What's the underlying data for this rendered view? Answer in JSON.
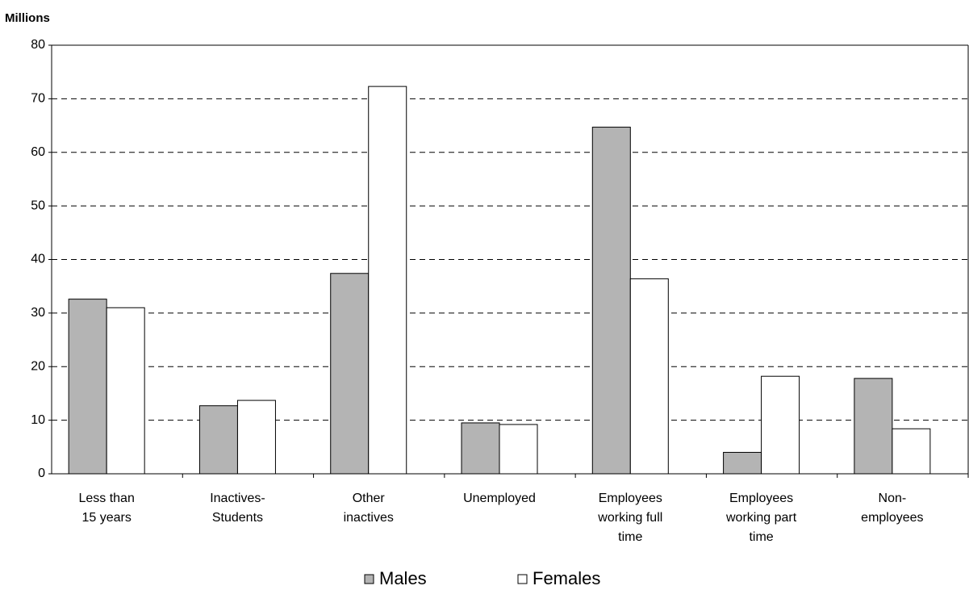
{
  "chart_data": {
    "type": "bar",
    "y_label": "Millions",
    "categories": [
      "Less than 15 years",
      "Inactives-Students",
      "Other inactives",
      "Unemployed",
      "Employees working full time",
      "Employees working part time",
      "Non-employees"
    ],
    "series": [
      {
        "name": "Males",
        "color": "#b4b4b4",
        "values": [
          32.6,
          12.7,
          37.4,
          9.5,
          64.7,
          4.0,
          17.8
        ]
      },
      {
        "name": "Females",
        "color": "#ffffff",
        "values": [
          31.0,
          13.7,
          72.3,
          9.2,
          36.4,
          18.2,
          8.4
        ]
      }
    ],
    "ylim": [
      0,
      80
    ],
    "yticks": [
      0,
      10,
      20,
      30,
      40,
      50,
      60,
      70,
      80
    ],
    "grid": true,
    "legend": "bottom"
  }
}
